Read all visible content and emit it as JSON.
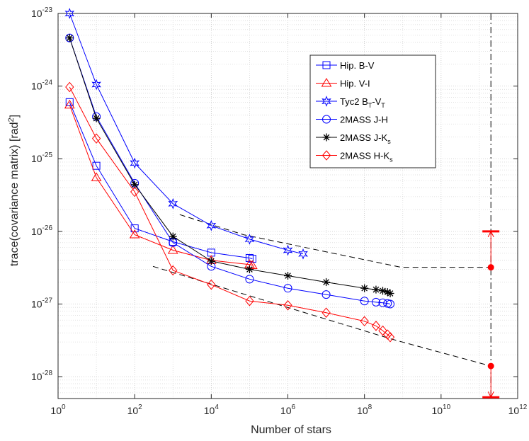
{
  "chart_data": {
    "type": "line",
    "xscale": "log",
    "yscale": "log",
    "xlabel": "Number of stars",
    "ylabel_main": "trace(covariance matrix)  [rad",
    "ylabel_sup": "2",
    "ylabel_end": "]",
    "xlim": [
      1,
      1000000000000
    ],
    "ylim": [
      5e-29,
      1e-23
    ],
    "grid": true,
    "legend_position": "top-right",
    "x_ticks": [
      {
        "exp": 0,
        "base": "10",
        "sup": "0"
      },
      {
        "exp": 2,
        "base": "10",
        "sup": "2"
      },
      {
        "exp": 4,
        "base": "10",
        "sup": "4"
      },
      {
        "exp": 6,
        "base": "10",
        "sup": "6"
      },
      {
        "exp": 8,
        "base": "10",
        "sup": "8"
      },
      {
        "exp": 10,
        "base": "10",
        "sup": "10"
      },
      {
        "exp": 12,
        "base": "10",
        "sup": "12"
      }
    ],
    "y_ticks": [
      {
        "exp": -28,
        "base": "10",
        "sup": "-28"
      },
      {
        "exp": -27,
        "base": "10",
        "sup": "-27"
      },
      {
        "exp": -26,
        "base": "10",
        "sup": "-26"
      },
      {
        "exp": -25,
        "base": "10",
        "sup": "-25"
      },
      {
        "exp": -24,
        "base": "10",
        "sup": "-24"
      },
      {
        "exp": -23,
        "base": "10",
        "sup": "-23"
      }
    ],
    "series": [
      {
        "name": "Hip. B-V",
        "label_main": "Hip. B-V",
        "color": "#0000ff",
        "marker": "square",
        "x": [
          2,
          10,
          100,
          1000,
          10000,
          100000,
          118000
        ],
        "y": [
          6e-25,
          8e-26,
          1.1e-26,
          7.2e-27,
          5.1e-27,
          4.3e-27,
          4.2e-27
        ]
      },
      {
        "name": "Hip. V-I",
        "label_main": "Hip. V-I",
        "color": "#ff0000",
        "marker": "triangle",
        "x": [
          2,
          10,
          100,
          1000,
          10000,
          100000,
          118000
        ],
        "y": [
          5.5e-25,
          5.5e-26,
          9e-27,
          5.5e-27,
          4e-27,
          3.5e-27,
          3.4e-27
        ]
      },
      {
        "name": "Tyc2 BT-VT",
        "label_main": "Tyc2 B",
        "label_sub1": "T",
        "label_mid": "-V",
        "label_sub2": "T",
        "color": "#0000ff",
        "marker": "hexagram",
        "x": [
          2,
          10,
          100,
          1000,
          10000,
          100000,
          1000000,
          2500000
        ],
        "y": [
          1e-23,
          1.05e-24,
          8.7e-26,
          2.4e-26,
          1.2e-26,
          7.8e-27,
          5.5e-27,
          4.9e-27
        ]
      },
      {
        "name": "2MASS J-H",
        "label_main": "2MASS J-H",
        "color": "#0000ff",
        "marker": "circle",
        "x": [
          2,
          10,
          100,
          1000,
          10000,
          100000,
          1000000,
          10000000,
          100000000,
          200000000,
          300000000,
          400000000,
          470000000
        ],
        "y": [
          4.6e-24,
          3.8e-25,
          4.6e-26,
          7e-27,
          3.3e-27,
          2.2e-27,
          1.65e-27,
          1.35e-27,
          1.1e-27,
          1.06e-27,
          1.04e-27,
          1.02e-27,
          1e-27
        ]
      },
      {
        "name": "2MASS J-Ks",
        "label_main": "2MASS J-K",
        "label_sub1": "s",
        "color": "#000000",
        "marker": "asterisk",
        "x": [
          2,
          10,
          100,
          1000,
          10000,
          100000,
          1000000,
          10000000,
          100000000,
          200000000,
          300000000,
          400000000,
          470000000
        ],
        "y": [
          4.6e-24,
          3.6e-25,
          4.4e-26,
          8.5e-27,
          3.9e-27,
          3e-27,
          2.45e-27,
          2e-27,
          1.65e-27,
          1.58e-27,
          1.52e-27,
          1.46e-27,
          1.4e-27
        ]
      },
      {
        "name": "2MASS H-Ks",
        "label_main": "2MASS H-K",
        "label_sub1": "s",
        "color": "#ff0000",
        "marker": "diamond",
        "x": [
          2,
          10,
          100,
          1000,
          10000,
          100000,
          1000000,
          10000000,
          100000000,
          200000000,
          300000000,
          400000000,
          470000000
        ],
        "y": [
          9.7e-25,
          1.9e-25,
          3.5e-26,
          2.9e-27,
          1.85e-27,
          1.1e-27,
          9.6e-28,
          7.6e-28,
          5.8e-28,
          5e-28,
          4.3e-28,
          3.8e-28,
          3.5e-28
        ]
      }
    ],
    "trend_lines": [
      {
        "name": "upper-dashed-trend",
        "color": "#000000",
        "x": [
          1500,
          70000,
          900000000,
          200000000000
        ],
        "y": [
          1.7e-26,
          9e-27,
          3.2e-27,
          3.2e-27
        ]
      },
      {
        "name": "lower-dashed-trend",
        "color": "#000000",
        "x": [
          300,
          500000000,
          200000000000
        ],
        "y": [
          3.3e-27,
          3.3e-28,
          1.4e-28
        ]
      }
    ],
    "vertical_line": {
      "x": 200000000000,
      "color": "#000000",
      "style": "dash-dot"
    },
    "markers": [
      {
        "name": "upper-red-point",
        "x": 200000000000,
        "y": 3.2e-27,
        "color": "#ff0000"
      },
      {
        "name": "lower-red-point",
        "x": 200000000000,
        "y": 1.4e-28,
        "color": "#ff0000"
      }
    ],
    "error_bars": [
      {
        "name": "upper-error-bar",
        "x": 200000000000,
        "y_from": 3.2e-27,
        "y_to": 1e-26,
        "color": "#ff0000"
      },
      {
        "name": "lower-error-bar",
        "x": 200000000000,
        "y_from": 1.4e-28,
        "y_to": 5.2e-29,
        "color": "#ff0000"
      }
    ]
  }
}
